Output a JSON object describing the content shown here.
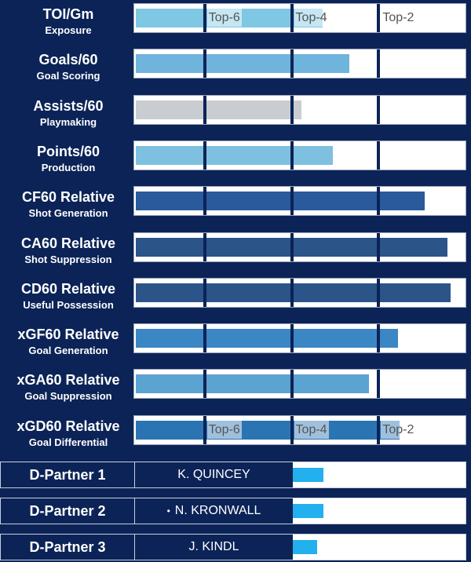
{
  "colors": {
    "background": "#0b2357",
    "partner_bar": "#22b0ee"
  },
  "chart_data": {
    "type": "bar",
    "orientation": "horizontal",
    "xlim": [
      0,
      100
    ],
    "reference_lines": [
      {
        "label": "Top-6",
        "value": 21
      },
      {
        "label": "Top-4",
        "value": 47.5
      },
      {
        "label": "Top-2",
        "value": 74
      }
    ],
    "categories": [
      {
        "name": "TOI/Gm",
        "subtitle": "Exposure",
        "value": 57,
        "color": "#7ec8e3"
      },
      {
        "name": "Goals/60",
        "subtitle": "Goal Scoring",
        "value": 65,
        "color": "#6fb4dd"
      },
      {
        "name": "Assists/60",
        "subtitle": "Playmaking",
        "value": 50.5,
        "color": "#c9cdd2"
      },
      {
        "name": "Points/60",
        "subtitle": "Production",
        "value": 60,
        "color": "#7ec0df"
      },
      {
        "name": "CF60 Relative",
        "subtitle": "Shot Generation",
        "value": 88,
        "color": "#2a5a9c"
      },
      {
        "name": "CA60 Relative",
        "subtitle": "Shot Suppression",
        "value": 95,
        "color": "#2b5489"
      },
      {
        "name": "CD60 Relative",
        "subtitle": "Useful Possession",
        "value": 96,
        "color": "#2b5489"
      },
      {
        "name": "xGF60 Relative",
        "subtitle": "Goal Generation",
        "value": 80,
        "color": "#3b86c4"
      },
      {
        "name": "xGA60 Relative",
        "subtitle": "Goal Suppression",
        "value": 71,
        "color": "#5ba3d0"
      },
      {
        "name": "xGD60 Relative",
        "subtitle": "Goal Differential",
        "value": 80.5,
        "color": "#2b74b4"
      }
    ],
    "tick_labels_rows": [
      0,
      9
    ]
  },
  "partners": [
    {
      "label": "D-Partner 1",
      "name": "K. QUINCEY",
      "value": 9,
      "mark": ""
    },
    {
      "label": "D-Partner 2",
      "name": "N. KRONWALL",
      "value": 9,
      "mark": "•"
    },
    {
      "label": "D-Partner 3",
      "name": "J. KINDL",
      "value": 7,
      "mark": ""
    }
  ]
}
